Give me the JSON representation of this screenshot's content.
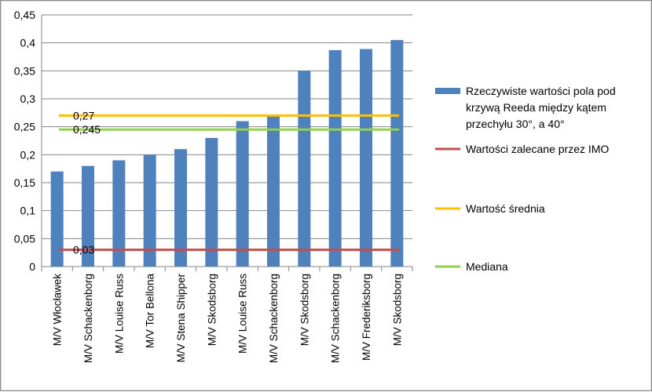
{
  "chart_data": {
    "type": "bar",
    "categories": [
      "M/V Włocławek",
      "M/V Schackenborg",
      "M/V Louise Russ",
      "M/V Tor Bellona",
      "M/V Stena Shipper",
      "M/V Skodsborg",
      "M/V Louise Russ",
      "M/V Schackenborg",
      "M/V Skodsborg",
      "M/V Schackenborg",
      "M/V Frederiksborg",
      "M/V Skodsborg"
    ],
    "series": [
      {
        "name": "Rzeczywiste wartości pola pod krzywą Reeda między kątem przechyłu 30°, a 40°",
        "type": "bar",
        "color": "#4f81bd",
        "values": [
          0.17,
          0.18,
          0.19,
          0.2,
          0.21,
          0.23,
          0.26,
          0.27,
          0.35,
          0.387,
          0.389,
          0.405
        ]
      },
      {
        "name": "Wartości zalecane przez IMO",
        "type": "line",
        "color": "#c0504d",
        "value": 0.03,
        "label": "0,03"
      },
      {
        "name": "Wartość średnia",
        "type": "line",
        "color": "#ffc000",
        "value": 0.27,
        "label": "0,27"
      },
      {
        "name": "Mediana",
        "type": "line",
        "color": "#92d050",
        "value": 0.245,
        "label": "0,245"
      }
    ],
    "yticks": [
      "0",
      "0,05",
      "0,1",
      "0,15",
      "0,2",
      "0,25",
      "0,3",
      "0,35",
      "0,4",
      "0,45"
    ],
    "ylim": [
      0,
      0.45
    ],
    "grid": true,
    "legend_position": "right",
    "title": "",
    "xlabel": "",
    "ylabel": ""
  }
}
